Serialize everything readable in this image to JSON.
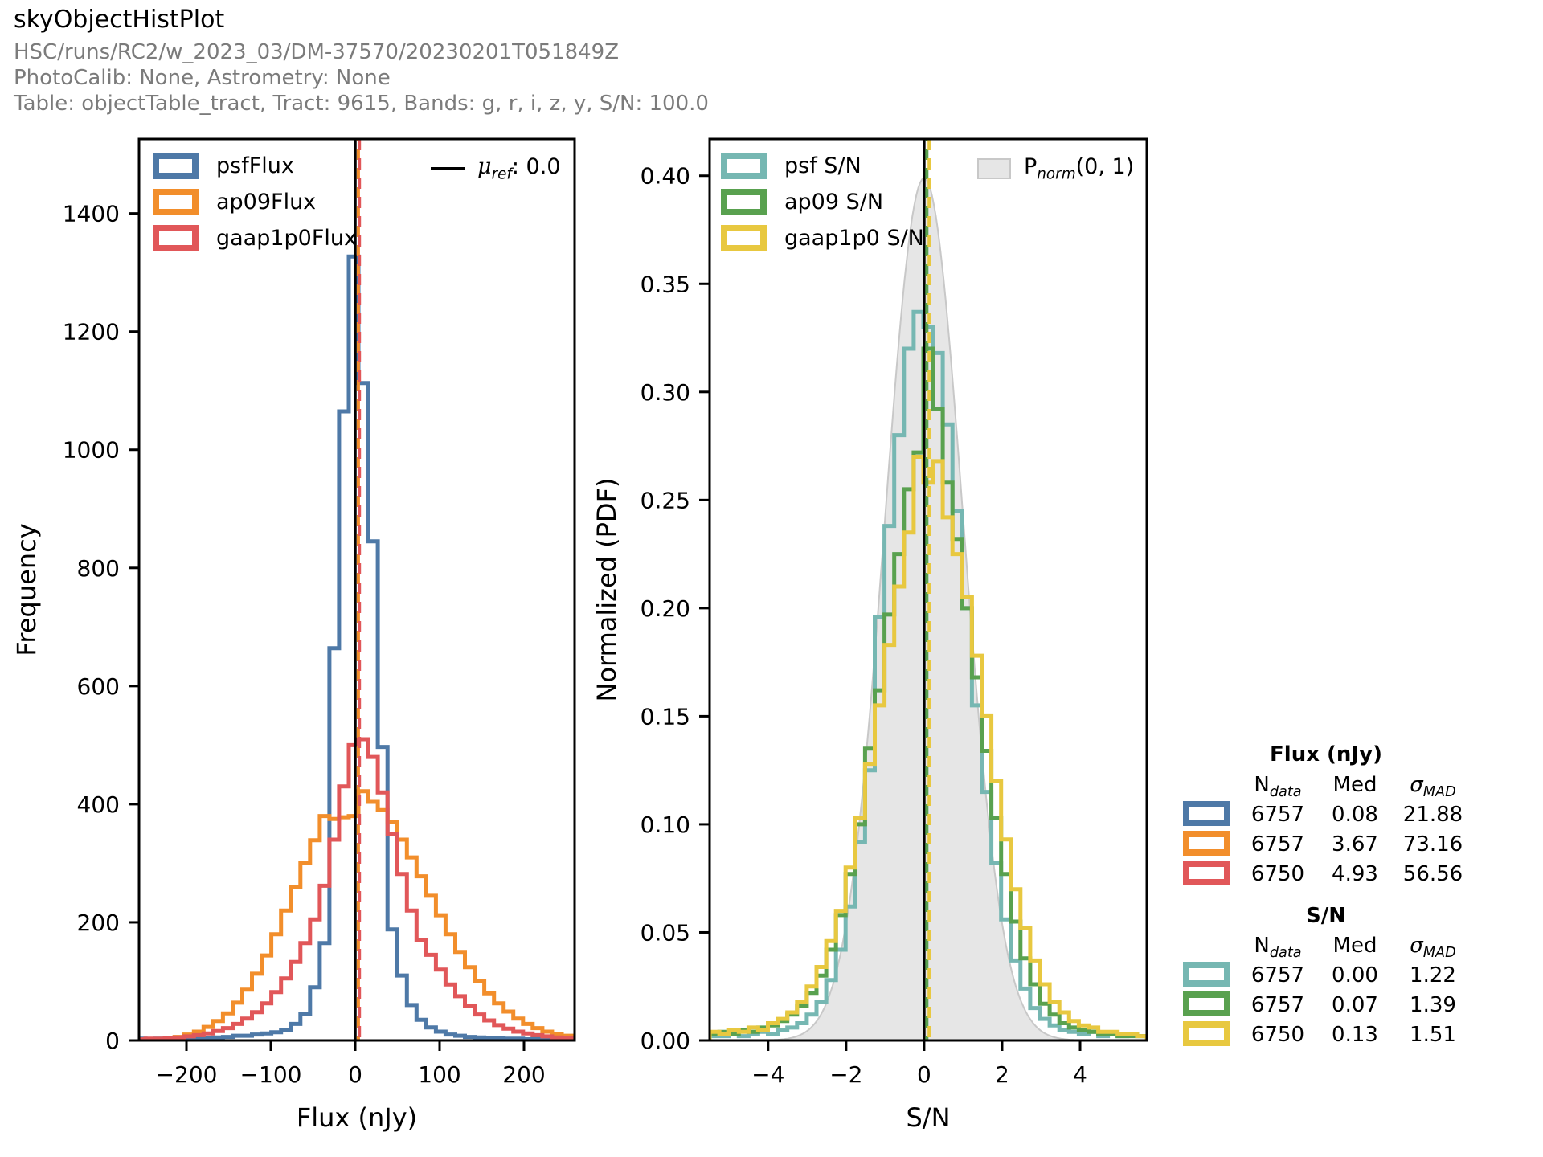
{
  "header": {
    "title": "skyObjectHistPlot",
    "run": "HSC/runs/RC2/w_2023_03/DM-37570/20230201T051849Z",
    "calib": "PhotoCalib: None, Astrometry: None",
    "table_info": "Table: objectTable_tract, Tract: 9615, Bands: g, r, i, z, y, S/N: 100.0"
  },
  "colors": {
    "blue": "#4e79a7",
    "orange": "#f28e2b",
    "red": "#e15759",
    "teal": "#76b7b2",
    "green": "#59a14f",
    "yellow": "#e8c840",
    "black": "#000000",
    "gray_fill": "#e6e6e6",
    "gray_edge": "#c8c8c8"
  },
  "legends": {
    "flux": {
      "items": [
        {
          "label": "psfFlux",
          "color_key": "blue"
        },
        {
          "label": "ap09Flux",
          "color_key": "orange"
        },
        {
          "label": "gaap1p0Flux",
          "color_key": "red"
        }
      ]
    },
    "sn": {
      "items": [
        {
          "label": "psf S/N",
          "color_key": "teal"
        },
        {
          "label": "ap09 S/N",
          "color_key": "green"
        },
        {
          "label": "gaap1p0 S/N",
          "color_key": "yellow"
        }
      ]
    },
    "mu_ref": {
      "symbol": "μ",
      "sub": "ref",
      "rest": ": 0.0"
    },
    "pnorm": {
      "symbol": "P",
      "sub": "norm",
      "rest": "(0, 1)"
    }
  },
  "stats": {
    "headers": {
      "n_main": "N",
      "n_sub": "data",
      "med": "Med",
      "sigma_main": "σ",
      "sigma_sub": "MAD"
    },
    "flux": {
      "title": "Flux (nJy)",
      "rows": [
        {
          "color_key": "blue",
          "n": "6757",
          "med": "0.08",
          "sigma": "21.88"
        },
        {
          "color_key": "orange",
          "n": "6757",
          "med": "3.67",
          "sigma": "73.16"
        },
        {
          "color_key": "red",
          "n": "6750",
          "med": "4.93",
          "sigma": "56.56"
        }
      ]
    },
    "sn": {
      "title": "S/N",
      "rows": [
        {
          "color_key": "teal",
          "n": "6757",
          "med": "0.00",
          "sigma": "1.22"
        },
        {
          "color_key": "green",
          "n": "6757",
          "med": "0.07",
          "sigma": "1.39"
        },
        {
          "color_key": "yellow",
          "n": "6750",
          "med": "0.13",
          "sigma": "1.51"
        }
      ]
    }
  },
  "chart_data": [
    {
      "type": "bar",
      "name": "flux-histogram",
      "subtype": "step-histogram",
      "xlabel": "Flux (nJy)",
      "ylabel": "Frequency",
      "xlim": [
        -256.2,
        260
      ],
      "ylim": [
        0,
        1526
      ],
      "bins": {
        "start": -260.0,
        "width": 11.471
      },
      "xticks": [
        {
          "v": -200,
          "label": "−200"
        },
        {
          "v": -100,
          "label": "−100"
        },
        {
          "v": 0,
          "label": "0"
        },
        {
          "v": 100,
          "label": "100"
        },
        {
          "v": 200,
          "label": "200"
        }
      ],
      "yticks": [
        {
          "v": 0,
          "label": "0"
        },
        {
          "v": 200,
          "label": "200"
        },
        {
          "v": 400,
          "label": "400"
        },
        {
          "v": 600,
          "label": "600"
        },
        {
          "v": 800,
          "label": "800"
        },
        {
          "v": 1000,
          "label": "1000"
        },
        {
          "v": 1200,
          "label": "1200"
        },
        {
          "v": 1400,
          "label": "1400"
        }
      ],
      "series": [
        {
          "name": "psfFlux",
          "color_key": "blue",
          "values": [
            3,
            2,
            3,
            2,
            4,
            3,
            5,
            4,
            5,
            6,
            8,
            8,
            10,
            12,
            14,
            18,
            28,
            45,
            90,
            165,
            664,
            1065,
            1327,
            1113,
            845,
            497,
            188,
            110,
            60,
            35,
            22,
            15,
            10,
            8,
            6,
            5,
            4,
            4,
            3,
            3,
            2,
            3,
            2,
            3,
            2
          ]
        },
        {
          "name": "ap09Flux",
          "color_key": "orange",
          "values": [
            1,
            2,
            2,
            4,
            6,
            10,
            15,
            23,
            33,
            46,
            64,
            86,
            113,
            144,
            180,
            220,
            260,
            300,
            339,
            380,
            375,
            378,
            380,
            422,
            404,
            390,
            370,
            340,
            310,
            278,
            245,
            212,
            180,
            150,
            124,
            100,
            80,
            63,
            49,
            37,
            28,
            21,
            15,
            11,
            8
          ]
        },
        {
          "name": "gaap1p0Flux",
          "color_key": "red",
          "values": [
            2,
            3,
            3,
            4,
            5,
            7,
            9,
            12,
            16,
            21,
            28,
            37,
            48,
            63,
            82,
            105,
            133,
            165,
            205,
            262,
            340,
            430,
            500,
            510,
            480,
            420,
            350,
            282,
            220,
            170,
            145,
            120,
            95,
            75,
            58,
            44,
            34,
            26,
            20,
            15,
            12,
            9,
            7,
            5,
            4
          ]
        }
      ],
      "vlines": [
        {
          "x": 0,
          "color_key": "black",
          "style": "solid",
          "name": "mu-ref-line"
        },
        {
          "x": 3.67,
          "color_key": "orange",
          "style": "dashed",
          "name": "ap09-median-line",
          "dashoffset": 12
        },
        {
          "x": 4.93,
          "color_key": "red",
          "style": "dashed",
          "name": "gaap-median-line",
          "dashoffset": 0
        }
      ]
    },
    {
      "type": "bar",
      "name": "sn-histogram",
      "subtype": "step-histogram",
      "xlabel": "S/N",
      "ylabel": "Normalized (PDF)",
      "xlim": [
        -5.5,
        5.71
      ],
      "ylim": [
        0,
        0.417
      ],
      "bins": {
        "start": -5.5,
        "width": 0.24911
      },
      "xticks": [
        {
          "v": -4,
          "label": "−4"
        },
        {
          "v": -2,
          "label": "−2"
        },
        {
          "v": 0,
          "label": "0"
        },
        {
          "v": 2,
          "label": "2"
        },
        {
          "v": 4,
          "label": "4"
        }
      ],
      "yticks": [
        {
          "v": 0.0,
          "label": "0.00"
        },
        {
          "v": 0.05,
          "label": "0.05"
        },
        {
          "v": 0.1,
          "label": "0.10"
        },
        {
          "v": 0.15,
          "label": "0.15"
        },
        {
          "v": 0.2,
          "label": "0.20"
        },
        {
          "v": 0.25,
          "label": "0.25"
        },
        {
          "v": 0.3,
          "label": "0.30"
        },
        {
          "v": 0.35,
          "label": "0.35"
        },
        {
          "v": 0.4,
          "label": "0.40"
        }
      ],
      "pdf": {
        "name": "Pnorm(0,1)",
        "mean": 0,
        "sigma": 1,
        "amplitude": 0.3989,
        "fill_key": "gray_fill",
        "edge_key": "gray_edge"
      },
      "series": [
        {
          "name": "psf-SN",
          "color_key": "teal",
          "values": [
            0.002,
            0.002,
            0.003,
            0.002,
            0.003,
            0.004,
            0.003,
            0.005,
            0.006,
            0.008,
            0.012,
            0.018,
            0.028,
            0.042,
            0.062,
            0.092,
            0.125,
            0.196,
            0.238,
            0.28,
            0.32,
            0.337,
            0.33,
            0.318,
            0.285,
            0.245,
            0.2,
            0.155,
            0.115,
            0.082,
            0.056,
            0.037,
            0.024,
            0.015,
            0.01,
            0.007,
            0.005,
            0.004,
            0.003,
            0.004,
            0.002,
            0.003,
            0.002,
            0.003,
            0.002
          ]
        },
        {
          "name": "ap09-SN",
          "color_key": "green",
          "values": [
            0.003,
            0.004,
            0.003,
            0.005,
            0.004,
            0.006,
            0.007,
            0.009,
            0.012,
            0.016,
            0.022,
            0.03,
            0.042,
            0.058,
            0.077,
            0.1,
            0.135,
            0.162,
            0.197,
            0.225,
            0.255,
            0.272,
            0.32,
            0.292,
            0.258,
            0.232,
            0.2,
            0.168,
            0.134,
            0.103,
            0.077,
            0.055,
            0.038,
            0.026,
            0.017,
            0.012,
            0.008,
            0.006,
            0.005,
            0.004,
            0.003,
            0.003,
            0.002,
            0.002,
            0.002
          ]
        },
        {
          "name": "gaap1p0-SN",
          "color_key": "yellow",
          "values": [
            0.004,
            0.003,
            0.005,
            0.004,
            0.006,
            0.005,
            0.008,
            0.01,
            0.013,
            0.018,
            0.025,
            0.034,
            0.046,
            0.06,
            0.08,
            0.103,
            0.128,
            0.155,
            0.183,
            0.21,
            0.235,
            0.27,
            0.258,
            0.268,
            0.242,
            0.225,
            0.205,
            0.178,
            0.15,
            0.12,
            0.093,
            0.07,
            0.052,
            0.037,
            0.026,
            0.018,
            0.013,
            0.009,
            0.007,
            0.006,
            0.004,
            0.004,
            0.003,
            0.003,
            0.002
          ]
        }
      ],
      "vlines": [
        {
          "x": 0,
          "color_key": "black",
          "style": "solid",
          "name": "sn-zero-line"
        },
        {
          "x": 0.07,
          "color_key": "green",
          "style": "dashed",
          "name": "ap09-sn-median-line",
          "dashoffset": 12
        },
        {
          "x": 0.13,
          "color_key": "yellow",
          "style": "dashed",
          "name": "gaap-sn-median-line",
          "dashoffset": 0
        }
      ]
    }
  ]
}
